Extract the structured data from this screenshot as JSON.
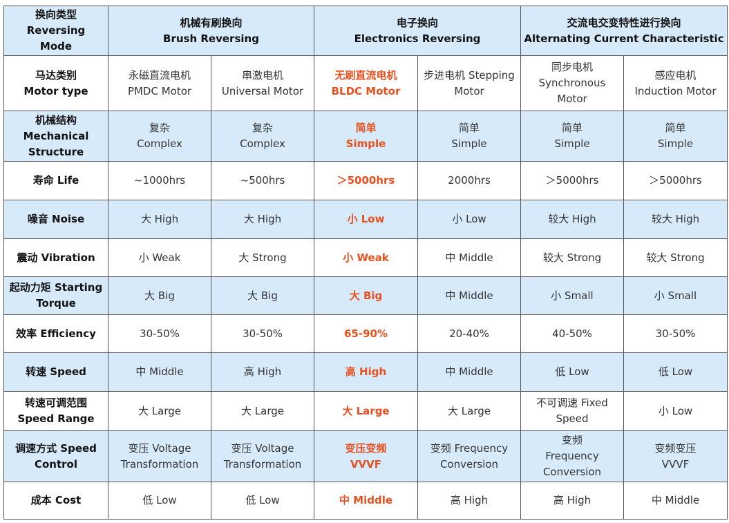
{
  "colors": {
    "highlight": "#e8501e",
    "band": "#d6eafa",
    "border": "#555555"
  },
  "header": {
    "label": [
      "换向类型",
      "Reversing",
      "Mode"
    ],
    "groups": [
      {
        "zh": "机械有刷换向",
        "en": "Brush Reversing"
      },
      {
        "zh": "电子换向",
        "en": "Electronics Reversing"
      },
      {
        "zh": "交流电交变特性进行换向",
        "en": "Alternating Current Characteristic"
      }
    ]
  },
  "rows": [
    {
      "label": [
        "马达类别",
        "Motor type"
      ],
      "cells": [
        [
          "永磁直流电机",
          "PMDC Motor"
        ],
        [
          "串激电机",
          "Universal Motor"
        ],
        [
          "无刷直流电机",
          "BLDC Motor"
        ],
        [
          "步进电机 Stepping",
          "Motor"
        ],
        [
          "同步电机",
          "Synchronous",
          "Motor"
        ],
        [
          "感应电机",
          "Induction Motor"
        ]
      ]
    },
    {
      "label": [
        "机械结构",
        "Mechanical",
        "Structure"
      ],
      "cells": [
        [
          "复杂",
          "Complex"
        ],
        [
          "复杂",
          "Complex"
        ],
        [
          "简单",
          "Simple"
        ],
        [
          "简单",
          "Simple"
        ],
        [
          "简单",
          "Simple"
        ],
        [
          "简单",
          "Simple"
        ]
      ]
    },
    {
      "label": [
        "寿命 Life"
      ],
      "cells": [
        [
          "~1000hrs"
        ],
        [
          "~500hrs"
        ],
        [
          "＞5000hrs"
        ],
        [
          "2000hrs"
        ],
        [
          "＞5000hrs"
        ],
        [
          "＞5000hrs"
        ]
      ]
    },
    {
      "label": [
        "噪音 Noise"
      ],
      "cells": [
        [
          "大 High"
        ],
        [
          "大 High"
        ],
        [
          "小 Low"
        ],
        [
          "小 Low"
        ],
        [
          "较大 High"
        ],
        [
          "较大 High"
        ]
      ]
    },
    {
      "label": [
        "震动 Vibration"
      ],
      "cells": [
        [
          "小 Weak"
        ],
        [
          "大 Strong"
        ],
        [
          "小 Weak"
        ],
        [
          "中 Middle"
        ],
        [
          "较大 Strong"
        ],
        [
          "较大 Strong"
        ]
      ]
    },
    {
      "label": [
        "起动力矩 Starting",
        "Torque"
      ],
      "cells": [
        [
          "大 Big"
        ],
        [
          "大 Big"
        ],
        [
          "大 Big"
        ],
        [
          "中 Middle"
        ],
        [
          "小 Small"
        ],
        [
          "小 Small"
        ]
      ]
    },
    {
      "label": [
        "效率 Efficiency"
      ],
      "cells": [
        [
          "30-50%"
        ],
        [
          "30-50%"
        ],
        [
          "65-90%"
        ],
        [
          "20-40%"
        ],
        [
          "40-50%"
        ],
        [
          "30-50%"
        ]
      ]
    },
    {
      "label": [
        "转速 Speed"
      ],
      "cells": [
        [
          "中 Middle"
        ],
        [
          "高 High"
        ],
        [
          "高 High"
        ],
        [
          "中 Middle"
        ],
        [
          "低 Low"
        ],
        [
          "低 Low"
        ]
      ]
    },
    {
      "label": [
        "转速可调范围",
        "Speed Range"
      ],
      "cells": [
        [
          "大 Large"
        ],
        [
          "大 Large"
        ],
        [
          "大 Large"
        ],
        [
          "大 Large"
        ],
        [
          "不可调速 Fixed",
          "Speed"
        ],
        [
          "小 Low"
        ]
      ]
    },
    {
      "label": [
        "调速方式 Speed",
        "Control"
      ],
      "cells": [
        [
          "变压 Voltage",
          "Transformation"
        ],
        [
          "变压 Voltage",
          "Transformation"
        ],
        [
          "变压变频",
          "VVVF"
        ],
        [
          "变频 Frequency",
          "Conversion"
        ],
        [
          "变频",
          "Frequency",
          "Conversion"
        ],
        [
          "变频变压",
          "VVVF"
        ]
      ]
    },
    {
      "label": [
        "成本 Cost"
      ],
      "cells": [
        [
          "低 Low"
        ],
        [
          "低 Low"
        ],
        [
          "中 Middle"
        ],
        [
          "高 High"
        ],
        [
          "高 High"
        ],
        [
          "中 Middle"
        ]
      ]
    }
  ]
}
